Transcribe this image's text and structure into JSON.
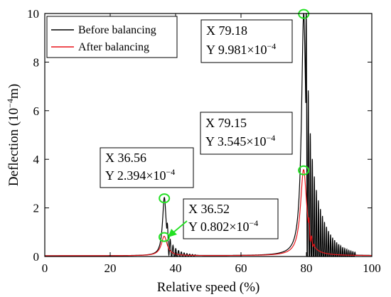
{
  "chart_data": {
    "type": "line",
    "xlabel": "Relative speed (%)",
    "ylabel": "Deflection (10",
    "ylabel_exp": "−4",
    "ylabel_unit": "m)",
    "xlim": [
      0,
      100
    ],
    "ylim": [
      0,
      10
    ],
    "xticks": [
      "0",
      "20",
      "40",
      "60",
      "80",
      "100"
    ],
    "yticks": [
      "0",
      "2",
      "4",
      "6",
      "8",
      "10"
    ],
    "legend_position": "top-left",
    "series": [
      {
        "name": "Before balancing",
        "color": "#000000",
        "peaks": [
          {
            "x": 36.56,
            "y": 2.394,
            "w": 1.0
          },
          {
            "x": 79.18,
            "y": 9.981,
            "w": 1.2
          }
        ],
        "oscillations": [
          {
            "start": 37.3,
            "end": 46,
            "amp": 0.55,
            "decay": 0.35,
            "period": 0.85
          },
          {
            "start": 79.8,
            "end": 95,
            "amp": 5.2,
            "decay": 0.25,
            "period": 0.62
          }
        ]
      },
      {
        "name": "After balancing",
        "color": "#e8141a",
        "peaks": [
          {
            "x": 36.52,
            "y": 0.802,
            "w": 1.6
          },
          {
            "x": 79.15,
            "y": 3.545,
            "w": 1.7
          }
        ],
        "oscillations": [
          {
            "start": 80.6,
            "end": 82.5,
            "amp": 0.45,
            "decay": 1.0,
            "period": 0.8
          }
        ]
      }
    ],
    "markers": [
      {
        "x": 36.56,
        "y": 2.394
      },
      {
        "x": 36.52,
        "y": 0.802
      },
      {
        "x": 79.18,
        "y": 9.981
      },
      {
        "x": 79.15,
        "y": 3.545
      }
    ],
    "annotations": [
      {
        "line1": "X 36.56",
        "line2": "Y 2.394×10",
        "exp": "−4"
      },
      {
        "line1": "X 36.52",
        "line2": "Y 0.802×10",
        "exp": "−4"
      },
      {
        "line1": "X 79.18",
        "line2": "Y 9.981×10",
        "exp": "−4"
      },
      {
        "line1": "X 79.15",
        "line2": "Y 3.545×10",
        "exp": "−4"
      }
    ],
    "colors": {
      "marker": "#22e022",
      "arrow": "#22e022"
    }
  }
}
